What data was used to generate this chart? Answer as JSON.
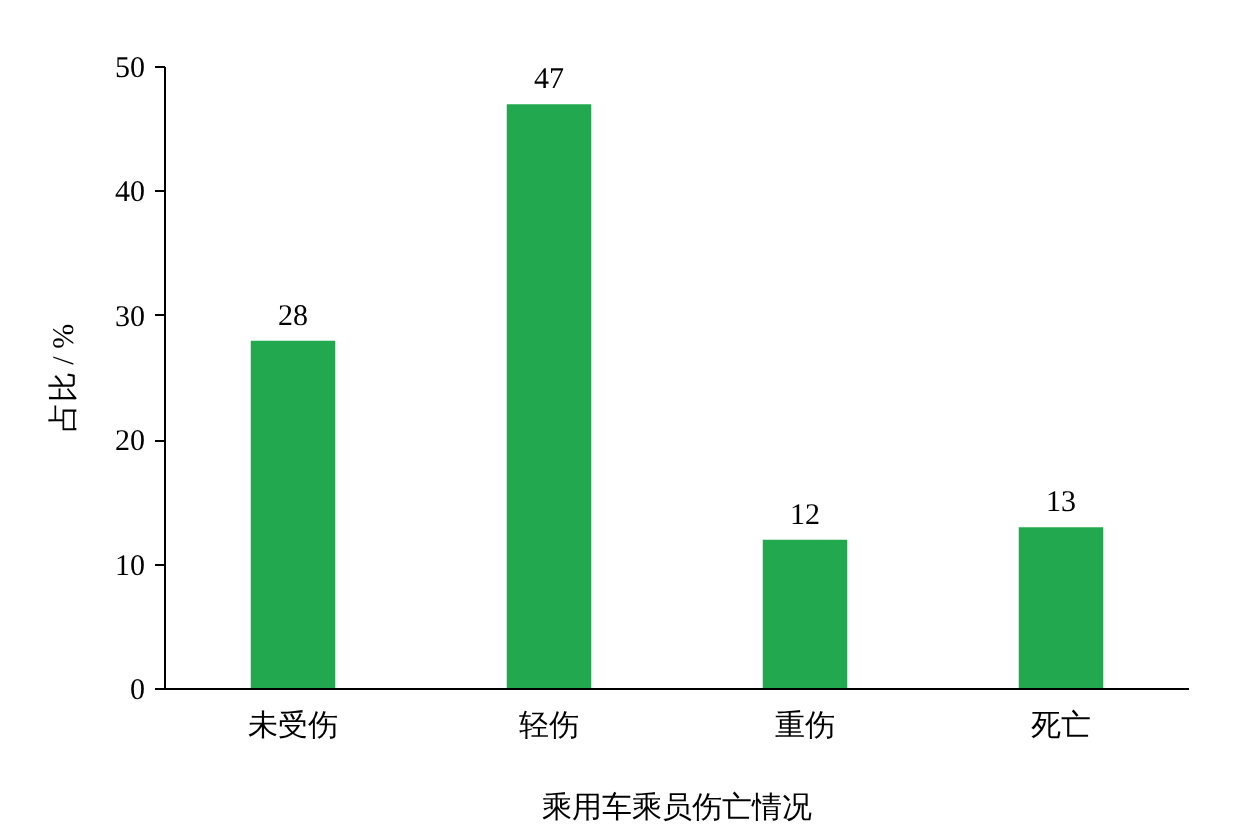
{
  "chart_data": {
    "type": "bar",
    "xlabel": "乘用车乘员伤亡情况",
    "ylabel": "占比 / %",
    "categories": [
      "未受伤",
      "轻伤",
      "重伤",
      "死亡"
    ],
    "values": [
      28,
      47,
      12,
      13
    ],
    "color": "#22a84e",
    "ylim": [
      0,
      50
    ],
    "yticks": [
      0,
      10,
      20,
      30,
      40,
      50
    ],
    "grid": false,
    "data_labels": true
  }
}
